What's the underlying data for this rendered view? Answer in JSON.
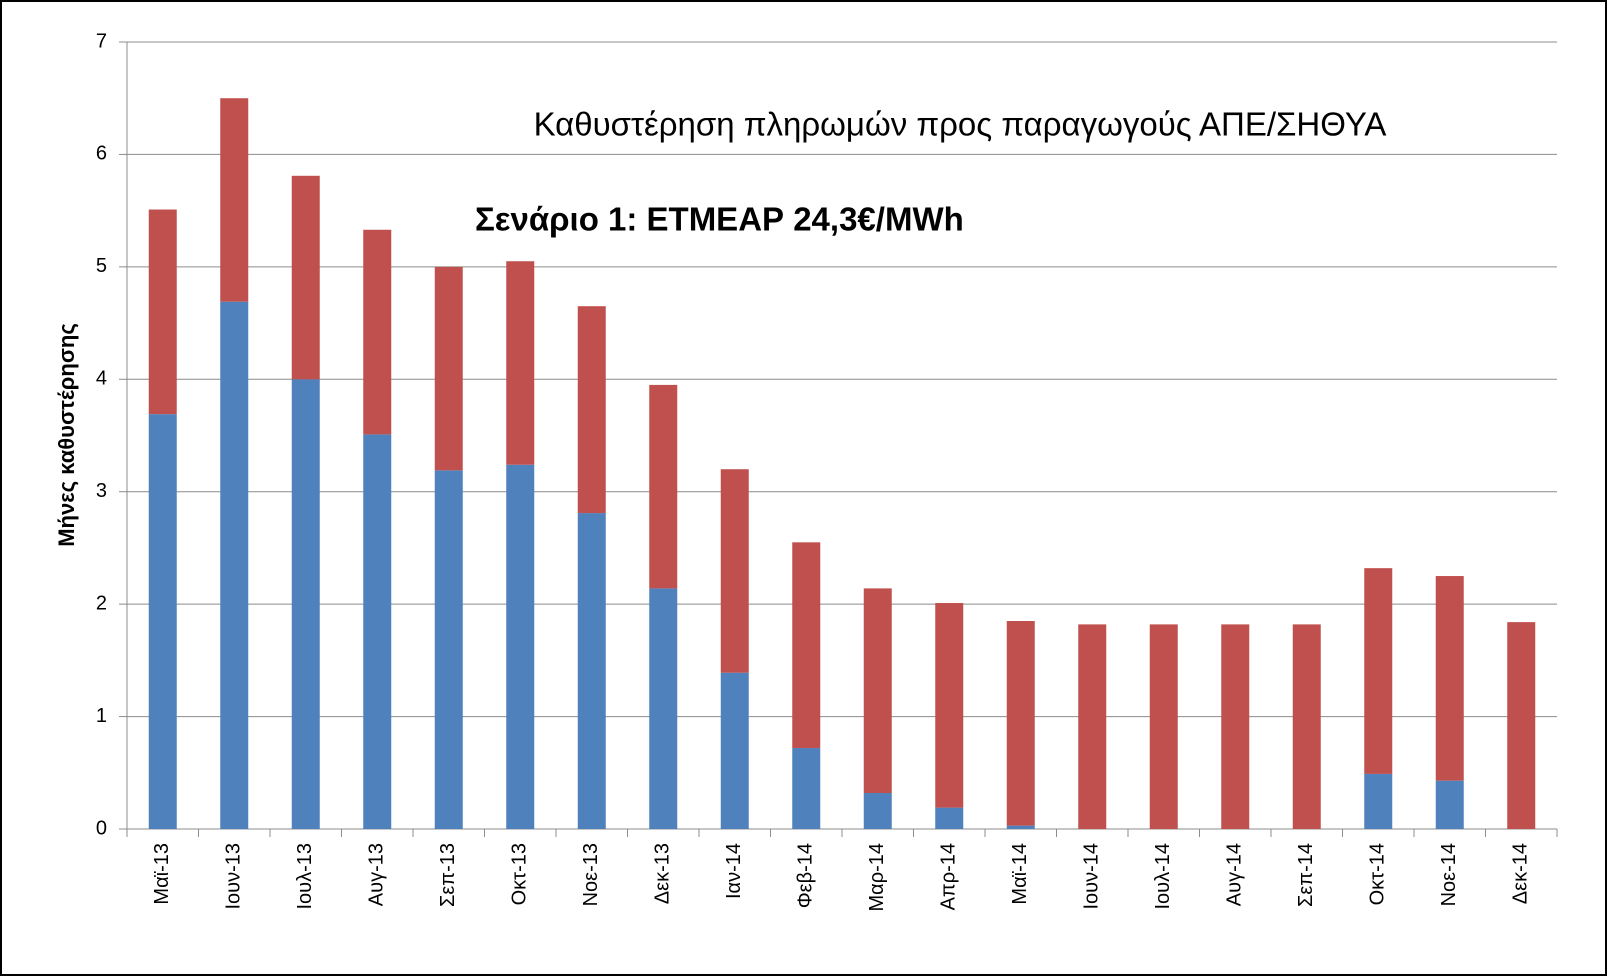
{
  "chart_data": {
    "type": "stacked_bar",
    "title": "Καθυστέρηση πληρωμών προς παραγωγούς ΑΠΕ/ΣΗΘΥΑ",
    "subtitle": "Σενάριο 1: ΕΤΜΕΑΡ 24,3€/MWh",
    "y_label": "Μήνες καθυστέρησης",
    "categories": [
      "Μαϊ-13",
      "Ιουν-13",
      "Ιουλ-13",
      "Αυγ-13",
      "Σεπ-13",
      "Οκτ-13",
      "Νοε-13",
      "Δεκ-13",
      "Ιαν-14",
      "Φεβ-14",
      "Μαρ-14",
      "Απρ-14",
      "Μαϊ-14",
      "Ιουν-14",
      "Ιουλ-14",
      "Αυγ-14",
      "Σεπ-14",
      "Οκτ-14",
      "Νοε-14",
      "Δεκ-14"
    ],
    "series": [
      {
        "color": "#4f81bd",
        "values": [
          3.69,
          4.69,
          4.0,
          3.51,
          3.19,
          3.24,
          2.81,
          2.14,
          1.39,
          0.72,
          0.32,
          0.19,
          0.03,
          0,
          0,
          0,
          0,
          0.49,
          0.43,
          0
        ]
      },
      {
        "color": "#c0504d",
        "values": [
          1.82,
          1.81,
          1.81,
          1.82,
          1.81,
          1.81,
          1.84,
          1.81,
          1.81,
          1.83,
          1.82,
          1.82,
          1.82,
          1.82,
          1.82,
          1.82,
          1.82,
          1.83,
          1.82,
          1.84
        ]
      }
    ],
    "ylim": [
      0,
      7
    ],
    "yticks": [
      0,
      1,
      2,
      3,
      4,
      5,
      6,
      7
    ],
    "grid": true
  }
}
